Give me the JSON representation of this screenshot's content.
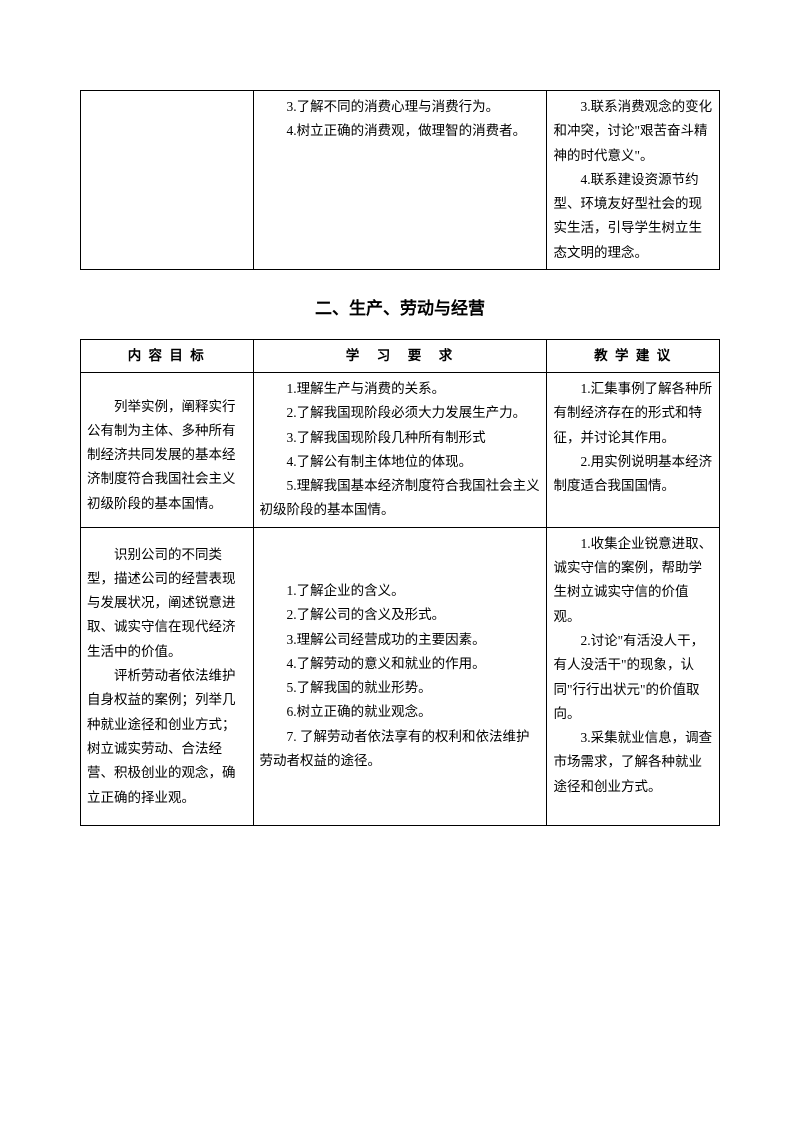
{
  "table1": {
    "row": {
      "col2": [
        "3.了解不同的消费心理与消费行为。",
        "4.树立正确的消费观，做理智的消费者。"
      ],
      "col3": [
        "3.联系消费观念的变化和冲突，讨论\"艰苦奋斗精神的时代意义\"。",
        "4.联系建设资源节约型、环境友好型社会的现实生活，引导学生树立生态文明的理念。"
      ]
    }
  },
  "section_title": "二、生产、劳动与经营",
  "table2": {
    "headers": {
      "h1": "内 容 目 标",
      "h2": "学　习　要　求",
      "h3": "教 学 建 议"
    },
    "row1": {
      "col1": "列举实例，阐释实行公有制为主体、多种所有制经济共同发展的基本经济制度符合我国社会主义初级阶段的基本国情。",
      "col2": [
        "1.理解生产与消费的关系。",
        "2.了解我国现阶段必须大力发展生产力。",
        "3.了解我国现阶段几种所有制形式",
        "4.了解公有制主体地位的体现。",
        "5.理解我国基本经济制度符合我国社会主义初级阶段的基本国情。"
      ],
      "col3": [
        "1.汇集事例了解各种所有制经济存在的形式和特征，并讨论其作用。",
        "2.用实例说明基本经济制度适合我国国情。"
      ]
    },
    "row2": {
      "col1a": "识别公司的不同类型，描述公司的经营表现与发展状况，阐述锐意进取、诚实守信在现代经济生活中的价值。",
      "col1b": "评析劳动者依法维护自身权益的案例；列举几种就业途径和创业方式；树立诚实劳动、合法经营、积极创业的观念，确立正确的择业观。",
      "col2": [
        "1.了解企业的含义。",
        "2.了解公司的含义及形式。",
        "3.理解公司经营成功的主要因素。",
        "4.了解劳动的意义和就业的作用。",
        "5.了解我国的就业形势。",
        "6.树立正确的就业观念。",
        "7. 了解劳动者依法享有的权利和依法维护劳动者权益的途径。"
      ],
      "col3": [
        "1.收集企业锐意进取、诚实守信的案例，帮助学生树立诚实守信的价值观。",
        "2.讨论\"有活没人干，有人没活干\"的现象，认同\"行行出状元\"的价值取向。",
        "3.采集就业信息，调查市场需求，了解各种就业途径和创业方式。"
      ]
    }
  }
}
